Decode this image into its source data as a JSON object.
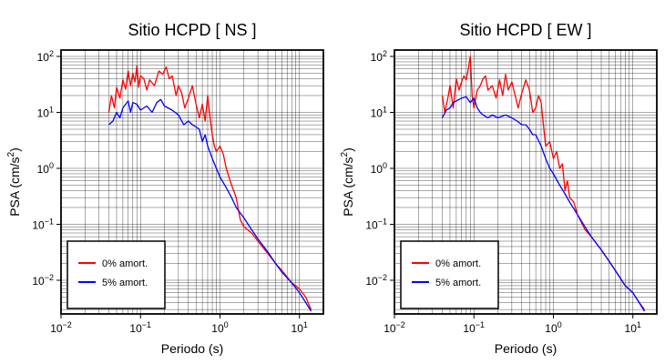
{
  "chart_data": [
    {
      "type": "line",
      "title": "Sitio HCPD [ NS ]",
      "xlabel": "Periodo (s)",
      "ylabel_prefix": "PSA (cm/s",
      "ylabel_sup": "2",
      "ylabel_suffix": ")",
      "x_scale": "log",
      "y_scale": "log",
      "xlim": [
        0.01,
        20
      ],
      "ylim": [
        0.0025,
        130
      ],
      "grid": true,
      "legend_position": "bottom-left",
      "xticks": [
        {
          "value": 0.01,
          "base": "10",
          "exp": "−2"
        },
        {
          "value": 0.1,
          "base": "10",
          "exp": "−1"
        },
        {
          "value": 1,
          "base": "10",
          "exp": "0"
        },
        {
          "value": 10,
          "base": "10",
          "exp": "1"
        }
      ],
      "yticks": [
        {
          "value": 0.01,
          "base": "10",
          "exp": "−2"
        },
        {
          "value": 0.1,
          "base": "10",
          "exp": "−1"
        },
        {
          "value": 1,
          "base": "10",
          "exp": "0"
        },
        {
          "value": 10,
          "base": "10",
          "exp": "1"
        },
        {
          "value": 100,
          "base": "10",
          "exp": "2"
        }
      ],
      "series": [
        {
          "name": "0% amort.",
          "color": "#ff0000",
          "points": [
            [
              0.04,
              10
            ],
            [
              0.043,
              20
            ],
            [
              0.047,
              12
            ],
            [
              0.05,
              28
            ],
            [
              0.055,
              18
            ],
            [
              0.06,
              38
            ],
            [
              0.065,
              26
            ],
            [
              0.07,
              55
            ],
            [
              0.075,
              30
            ],
            [
              0.08,
              50
            ],
            [
              0.085,
              35
            ],
            [
              0.09,
              68
            ],
            [
              0.095,
              28
            ],
            [
              0.1,
              45
            ],
            [
              0.11,
              40
            ],
            [
              0.12,
              25
            ],
            [
              0.13,
              38
            ],
            [
              0.15,
              30
            ],
            [
              0.17,
              55
            ],
            [
              0.19,
              48
            ],
            [
              0.21,
              65
            ],
            [
              0.23,
              40
            ],
            [
              0.25,
              45
            ],
            [
              0.28,
              20
            ],
            [
              0.3,
              30
            ],
            [
              0.33,
              22
            ],
            [
              0.36,
              12
            ],
            [
              0.4,
              18
            ],
            [
              0.45,
              30
            ],
            [
              0.5,
              14
            ],
            [
              0.55,
              8
            ],
            [
              0.6,
              14
            ],
            [
              0.65,
              7
            ],
            [
              0.7,
              20
            ],
            [
              0.75,
              8
            ],
            [
              0.8,
              4
            ],
            [
              0.85,
              2.5
            ],
            [
              0.9,
              2
            ],
            [
              1.0,
              2.5
            ],
            [
              1.1,
              1.8
            ],
            [
              1.2,
              1.0
            ],
            [
              1.4,
              0.5
            ],
            [
              1.6,
              0.3
            ],
            [
              1.8,
              0.12
            ],
            [
              2.0,
              0.09
            ],
            [
              2.5,
              0.07
            ],
            [
              3.0,
              0.05
            ],
            [
              4.0,
              0.03
            ],
            [
              5.0,
              0.02
            ],
            [
              6.0,
              0.015
            ],
            [
              8.0,
              0.009
            ],
            [
              10.0,
              0.007
            ],
            [
              12.0,
              0.005
            ],
            [
              14.0,
              0.003
            ]
          ]
        },
        {
          "name": "5% amort.",
          "color": "#0000ff",
          "points": [
            [
              0.04,
              6
            ],
            [
              0.045,
              7
            ],
            [
              0.05,
              10
            ],
            [
              0.055,
              8
            ],
            [
              0.06,
              12
            ],
            [
              0.07,
              16
            ],
            [
              0.075,
              10
            ],
            [
              0.08,
              15
            ],
            [
              0.09,
              14
            ],
            [
              0.1,
              11
            ],
            [
              0.12,
              13
            ],
            [
              0.14,
              10
            ],
            [
              0.16,
              15
            ],
            [
              0.18,
              17
            ],
            [
              0.2,
              13
            ],
            [
              0.25,
              11
            ],
            [
              0.3,
              9
            ],
            [
              0.35,
              6
            ],
            [
              0.4,
              7
            ],
            [
              0.45,
              6
            ],
            [
              0.5,
              5.5
            ],
            [
              0.55,
              5
            ],
            [
              0.6,
              3
            ],
            [
              0.65,
              4
            ],
            [
              0.7,
              2.5
            ],
            [
              0.8,
              1.5
            ],
            [
              0.9,
              1.0
            ],
            [
              1.0,
              0.7
            ],
            [
              1.2,
              0.45
            ],
            [
              1.4,
              0.3
            ],
            [
              1.6,
              0.2
            ],
            [
              2.0,
              0.13
            ],
            [
              2.5,
              0.08
            ],
            [
              3.0,
              0.055
            ],
            [
              4.0,
              0.032
            ],
            [
              5.0,
              0.02
            ],
            [
              6.0,
              0.014
            ],
            [
              8.0,
              0.009
            ],
            [
              10.0,
              0.006
            ],
            [
              12.0,
              0.004
            ],
            [
              14.0,
              0.0028
            ]
          ]
        }
      ]
    },
    {
      "type": "line",
      "title": "Sitio HCPD [ EW ]",
      "xlabel": "Periodo (s)",
      "ylabel_prefix": "PSA (cm/s",
      "ylabel_sup": "2",
      "ylabel_suffix": ")",
      "x_scale": "log",
      "y_scale": "log",
      "xlim": [
        0.01,
        20
      ],
      "ylim": [
        0.0025,
        130
      ],
      "grid": true,
      "legend_position": "bottom-left",
      "xticks": [
        {
          "value": 0.01,
          "base": "10",
          "exp": "−2"
        },
        {
          "value": 0.1,
          "base": "10",
          "exp": "−1"
        },
        {
          "value": 1,
          "base": "10",
          "exp": "0"
        },
        {
          "value": 10,
          "base": "10",
          "exp": "1"
        }
      ],
      "yticks": [
        {
          "value": 0.01,
          "base": "10",
          "exp": "−2"
        },
        {
          "value": 0.1,
          "base": "10",
          "exp": "−1"
        },
        {
          "value": 1,
          "base": "10",
          "exp": "0"
        },
        {
          "value": 10,
          "base": "10",
          "exp": "1"
        },
        {
          "value": 100,
          "base": "10",
          "exp": "2"
        }
      ],
      "series": [
        {
          "name": "0% amort.",
          "color": "#ff0000",
          "points": [
            [
              0.04,
              20
            ],
            [
              0.043,
              10
            ],
            [
              0.047,
              18
            ],
            [
              0.05,
              30
            ],
            [
              0.055,
              12
            ],
            [
              0.06,
              40
            ],
            [
              0.065,
              25
            ],
            [
              0.07,
              35
            ],
            [
              0.075,
              45
            ],
            [
              0.08,
              38
            ],
            [
              0.085,
              60
            ],
            [
              0.09,
              100
            ],
            [
              0.095,
              20
            ],
            [
              0.1,
              12
            ],
            [
              0.11,
              25
            ],
            [
              0.12,
              30
            ],
            [
              0.13,
              40
            ],
            [
              0.14,
              45
            ],
            [
              0.15,
              25
            ],
            [
              0.17,
              30
            ],
            [
              0.19,
              18
            ],
            [
              0.21,
              38
            ],
            [
              0.23,
              20
            ],
            [
              0.25,
              48
            ],
            [
              0.27,
              25
            ],
            [
              0.3,
              35
            ],
            [
              0.33,
              20
            ],
            [
              0.36,
              12
            ],
            [
              0.4,
              22
            ],
            [
              0.45,
              38
            ],
            [
              0.5,
              25
            ],
            [
              0.55,
              10
            ],
            [
              0.6,
              12
            ],
            [
              0.65,
              20
            ],
            [
              0.7,
              15
            ],
            [
              0.8,
              2.5
            ],
            [
              0.9,
              3
            ],
            [
              1.0,
              1.5
            ],
            [
              1.1,
              2.0
            ],
            [
              1.2,
              1.0
            ],
            [
              1.3,
              1.2
            ],
            [
              1.4,
              0.4
            ],
            [
              1.5,
              0.6
            ],
            [
              1.6,
              0.3
            ],
            [
              1.8,
              0.25
            ],
            [
              2.0,
              0.15
            ],
            [
              2.5,
              0.08
            ],
            [
              3.0,
              0.06
            ],
            [
              4.0,
              0.035
            ],
            [
              5.0,
              0.022
            ],
            [
              6.0,
              0.015
            ],
            [
              8.0,
              0.008
            ],
            [
              10.0,
              0.006
            ],
            [
              12.0,
              0.004
            ],
            [
              14.0,
              0.003
            ]
          ]
        },
        {
          "name": "5% amort.",
          "color": "#0000ff",
          "points": [
            [
              0.04,
              8
            ],
            [
              0.045,
              11
            ],
            [
              0.05,
              12
            ],
            [
              0.055,
              15
            ],
            [
              0.06,
              16
            ],
            [
              0.07,
              18
            ],
            [
              0.08,
              19
            ],
            [
              0.09,
              15
            ],
            [
              0.1,
              18
            ],
            [
              0.11,
              12
            ],
            [
              0.12,
              10
            ],
            [
              0.13,
              9
            ],
            [
              0.15,
              8
            ],
            [
              0.17,
              9
            ],
            [
              0.2,
              8
            ],
            [
              0.25,
              9
            ],
            [
              0.3,
              8
            ],
            [
              0.35,
              7
            ],
            [
              0.4,
              6
            ],
            [
              0.45,
              6
            ],
            [
              0.5,
              5
            ],
            [
              0.55,
              4
            ],
            [
              0.6,
              4
            ],
            [
              0.7,
              2.5
            ],
            [
              0.8,
              1.5
            ],
            [
              0.9,
              1.0
            ],
            [
              1.0,
              0.8
            ],
            [
              1.2,
              0.5
            ],
            [
              1.4,
              0.35
            ],
            [
              1.6,
              0.25
            ],
            [
              2.0,
              0.15
            ],
            [
              2.5,
              0.09
            ],
            [
              3.0,
              0.06
            ],
            [
              4.0,
              0.035
            ],
            [
              5.0,
              0.022
            ],
            [
              6.0,
              0.015
            ],
            [
              8.0,
              0.008
            ],
            [
              10.0,
              0.006
            ],
            [
              12.0,
              0.004
            ],
            [
              14.0,
              0.0028
            ]
          ]
        }
      ]
    }
  ]
}
